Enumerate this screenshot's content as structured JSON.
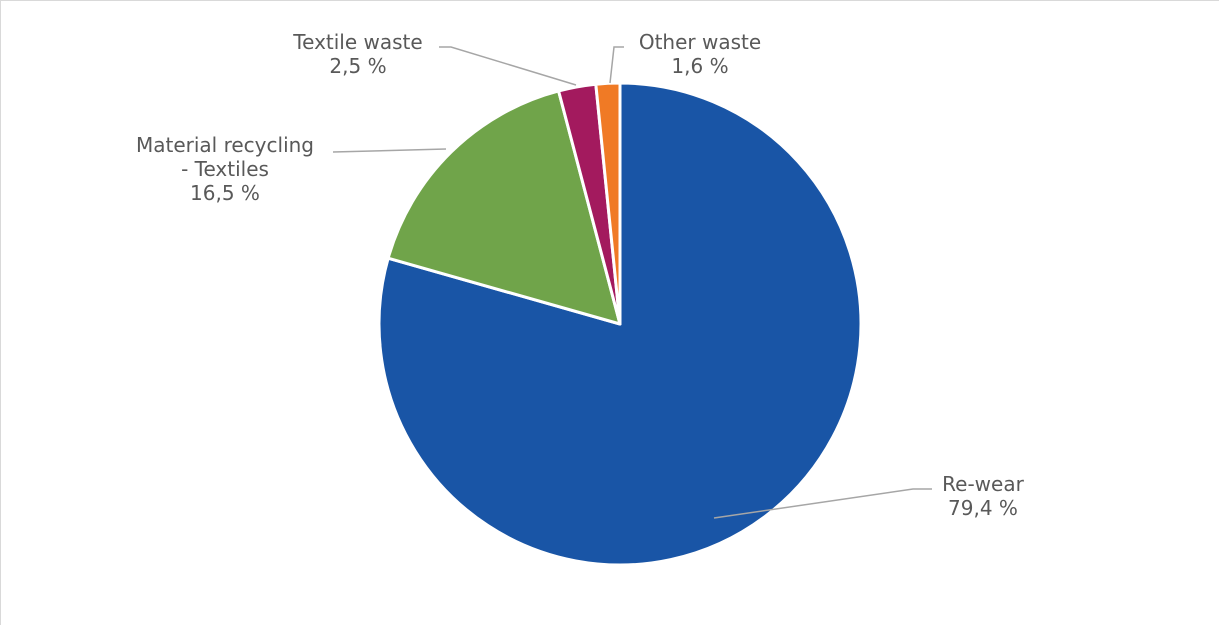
{
  "chart_data": {
    "type": "pie",
    "title": "",
    "slices": [
      {
        "label_lines": [
          "Re-wear"
        ],
        "value_label": "79,4 %",
        "value": 79.4,
        "color": "#1955a6"
      },
      {
        "label_lines": [
          "Material recycling",
          "- Textiles"
        ],
        "value_label": "16,5 %",
        "value": 16.5,
        "color": "#70a44a"
      },
      {
        "label_lines": [
          "Textile waste"
        ],
        "value_label": "2,5 %",
        "value": 2.5,
        "color": "#a31a5e"
      },
      {
        "label_lines": [
          "Other waste"
        ],
        "value_label": "1,6 %",
        "value": 1.6,
        "color": "#f07a25"
      }
    ],
    "leader_line_color": "#a6a6a6",
    "slice_border_color": "#ffffff"
  }
}
